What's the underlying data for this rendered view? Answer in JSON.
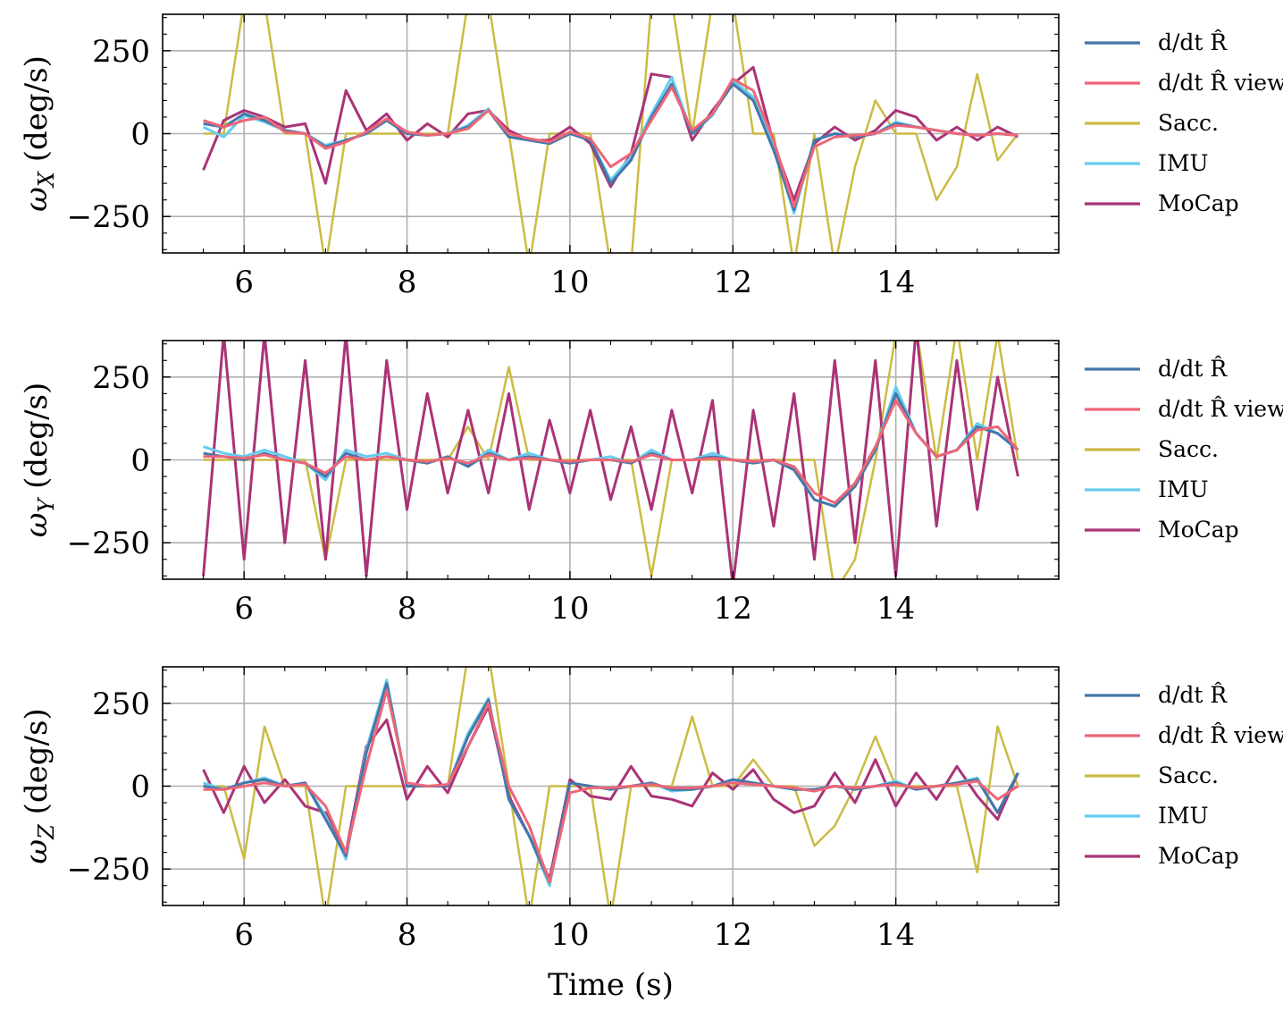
{
  "figure": {
    "xlabel": "Time (s)"
  },
  "legend": [
    {
      "label": "d/dt R̂",
      "color": "#4477AA"
    },
    {
      "label": "d/dt R̂ view",
      "color": "#EE6677"
    },
    {
      "label": "Sacc.",
      "color": "#CCBB44"
    },
    {
      "label": "IMU",
      "color": "#66CCEE"
    },
    {
      "label": "MoCap",
      "color": "#AA3377"
    }
  ],
  "chart_data": [
    {
      "type": "line",
      "ylabel_symbol": "ω",
      "ylabel_sub": "X",
      "ylabel_unit": "(deg/s)",
      "xlim": [
        5.0,
        16.0
      ],
      "ylim": [
        -360,
        360
      ],
      "xticks": [
        6,
        8,
        10,
        12,
        14
      ],
      "yticks": [
        250,
        0,
        -250
      ],
      "grid": true,
      "legend_position": "outside-right",
      "x": [
        5.5,
        5.75,
        6.0,
        6.25,
        6.5,
        6.75,
        7.0,
        7.25,
        7.5,
        7.75,
        8.0,
        8.25,
        8.5,
        8.75,
        9.0,
        9.25,
        9.5,
        9.75,
        10.0,
        10.25,
        10.5,
        10.75,
        11.0,
        11.25,
        11.5,
        11.75,
        12.0,
        12.25,
        12.5,
        12.75,
        13.0,
        13.25,
        13.5,
        13.75,
        14.0,
        14.25,
        14.5,
        14.75,
        15.0,
        15.25,
        15.5
      ],
      "series": [
        {
          "name": "d/dt R̂",
          "color": "#4477AA",
          "values": [
            30,
            20,
            60,
            40,
            10,
            0,
            -40,
            -20,
            0,
            40,
            0,
            -5,
            0,
            20,
            70,
            -10,
            -20,
            -30,
            0,
            -20,
            -150,
            -80,
            50,
            150,
            0,
            60,
            150,
            100,
            -50,
            -230,
            -20,
            0,
            -10,
            0,
            30,
            20,
            10,
            0,
            -5,
            0,
            -5
          ]
        },
        {
          "name": "d/dt R̂ view",
          "color": "#EE6677",
          "values": [
            40,
            20,
            40,
            50,
            5,
            0,
            -45,
            -25,
            5,
            45,
            5,
            -5,
            0,
            15,
            70,
            0,
            -15,
            -25,
            5,
            -15,
            -100,
            -60,
            40,
            140,
            10,
            60,
            165,
            130,
            -20,
            -220,
            -40,
            -10,
            -5,
            0,
            25,
            20,
            10,
            0,
            -5,
            0,
            -5
          ]
        },
        {
          "name": "IMU",
          "color": "#66CCEE",
          "values": [
            20,
            -10,
            55,
            35,
            10,
            0,
            -35,
            -20,
            0,
            40,
            0,
            -5,
            0,
            25,
            75,
            -10,
            -20,
            -30,
            0,
            -20,
            -140,
            -70,
            60,
            170,
            0,
            55,
            160,
            110,
            -40,
            -240,
            -20,
            0,
            -10,
            0,
            35,
            20,
            10,
            0,
            -5,
            0,
            -5
          ]
        },
        {
          "name": "MoCap",
          "color": "#AA3377",
          "values": [
            -110,
            40,
            70,
            50,
            20,
            30,
            -150,
            130,
            10,
            60,
            -20,
            30,
            -10,
            60,
            70,
            10,
            -20,
            -20,
            20,
            -30,
            -160,
            -60,
            180,
            170,
            -20,
            70,
            150,
            200,
            -30,
            -200,
            -30,
            20,
            -20,
            10,
            70,
            50,
            -20,
            20,
            -20,
            20,
            -10
          ]
        },
        {
          "name": "Sacc.",
          "color": "#CCBB44",
          "values": [
            0,
            0,
            400,
            400,
            0,
            0,
            -400,
            0,
            0,
            0,
            0,
            0,
            0,
            400,
            400,
            0,
            -400,
            0,
            0,
            0,
            -400,
            -400,
            400,
            400,
            0,
            400,
            400,
            0,
            0,
            -400,
            0,
            -400,
            -100,
            100,
            0,
            0,
            -200,
            -100,
            180,
            -80,
            0
          ]
        }
      ]
    },
    {
      "type": "line",
      "ylabel_symbol": "ω",
      "ylabel_sub": "Y",
      "ylabel_unit": "(deg/s)",
      "xlim": [
        5.0,
        16.0
      ],
      "ylim": [
        -360,
        360
      ],
      "xticks": [
        6,
        8,
        10,
        12,
        14
      ],
      "yticks": [
        250,
        0,
        -250
      ],
      "grid": true,
      "legend_position": "outside-right",
      "x": [
        5.5,
        5.75,
        6.0,
        6.25,
        6.5,
        6.75,
        7.0,
        7.25,
        7.5,
        7.75,
        8.0,
        8.25,
        8.5,
        8.75,
        9.0,
        9.25,
        9.5,
        9.75,
        10.0,
        10.25,
        10.5,
        10.75,
        11.0,
        11.25,
        11.5,
        11.75,
        12.0,
        12.25,
        12.5,
        12.75,
        13.0,
        13.25,
        13.5,
        13.75,
        14.0,
        14.25,
        14.5,
        14.75,
        15.0,
        15.25,
        15.5
      ],
      "series": [
        {
          "name": "d/dt R̂",
          "color": "#4477AA",
          "values": [
            20,
            10,
            0,
            20,
            0,
            -10,
            -50,
            20,
            0,
            10,
            0,
            -10,
            10,
            -20,
            20,
            0,
            10,
            0,
            -10,
            0,
            0,
            -10,
            20,
            0,
            0,
            10,
            0,
            -10,
            0,
            -30,
            -120,
            -140,
            -80,
            30,
            200,
            80,
            10,
            30,
            100,
            80,
            30
          ]
        },
        {
          "name": "d/dt R̂ view",
          "color": "#EE6677",
          "values": [
            10,
            10,
            5,
            15,
            0,
            -10,
            -40,
            10,
            0,
            10,
            0,
            -5,
            5,
            -10,
            15,
            0,
            5,
            0,
            -5,
            0,
            0,
            -5,
            15,
            0,
            0,
            5,
            0,
            -5,
            0,
            -20,
            -100,
            -130,
            -70,
            40,
            180,
            80,
            10,
            30,
            90,
            100,
            30
          ]
        },
        {
          "name": "IMU",
          "color": "#66CCEE",
          "values": [
            40,
            20,
            10,
            30,
            10,
            -10,
            -60,
            30,
            10,
            20,
            0,
            -10,
            10,
            -20,
            30,
            0,
            20,
            0,
            -10,
            0,
            10,
            -10,
            30,
            0,
            0,
            20,
            0,
            -10,
            0,
            -30,
            -120,
            -140,
            -80,
            30,
            220,
            80,
            10,
            30,
            110,
            80,
            30
          ]
        },
        {
          "name": "MoCap",
          "color": "#AA3377",
          "values": [
            -350,
            380,
            -300,
            380,
            -250,
            300,
            -300,
            380,
            -350,
            300,
            -150,
            200,
            -100,
            150,
            -100,
            200,
            -150,
            120,
            -100,
            150,
            -120,
            100,
            -150,
            150,
            -100,
            180,
            -380,
            150,
            -200,
            200,
            -300,
            300,
            -250,
            300,
            -350,
            400,
            -200,
            300,
            -150,
            250,
            -50
          ]
        },
        {
          "name": "Sacc.",
          "color": "#CCBB44",
          "values": [
            0,
            0,
            0,
            0,
            0,
            0,
            -300,
            0,
            0,
            0,
            0,
            0,
            0,
            100,
            0,
            280,
            0,
            0,
            0,
            0,
            0,
            0,
            -350,
            0,
            0,
            0,
            0,
            0,
            0,
            0,
            0,
            -400,
            -300,
            0,
            380,
            400,
            0,
            400,
            0,
            380,
            0
          ]
        }
      ]
    },
    {
      "type": "line",
      "ylabel_symbol": "ω",
      "ylabel_sub": "Z",
      "ylabel_unit": "(deg/s)",
      "xlim": [
        5.0,
        16.0
      ],
      "ylim": [
        -360,
        360
      ],
      "xticks": [
        6,
        8,
        10,
        12,
        14
      ],
      "yticks": [
        250,
        0,
        -250
      ],
      "grid": true,
      "legend_position": "outside-right",
      "x": [
        5.5,
        5.75,
        6.0,
        6.25,
        6.5,
        6.75,
        7.0,
        7.25,
        7.5,
        7.75,
        8.0,
        8.25,
        8.5,
        8.75,
        9.0,
        9.25,
        9.5,
        9.75,
        10.0,
        10.25,
        10.5,
        10.75,
        11.0,
        11.25,
        11.5,
        11.75,
        12.0,
        12.25,
        12.5,
        12.75,
        13.0,
        13.25,
        13.5,
        13.75,
        14.0,
        14.25,
        14.5,
        14.75,
        15.0,
        15.25,
        15.5
      ],
      "series": [
        {
          "name": "d/dt R̂",
          "color": "#4477AA",
          "values": [
            0,
            -10,
            10,
            20,
            0,
            10,
            -100,
            -210,
            100,
            310,
            0,
            0,
            0,
            150,
            260,
            -40,
            -150,
            -290,
            10,
            0,
            -10,
            0,
            10,
            -10,
            -10,
            0,
            20,
            10,
            0,
            -10,
            -10,
            0,
            -10,
            0,
            10,
            -10,
            0,
            10,
            20,
            -80,
            40
          ]
        },
        {
          "name": "d/dt R̂ view",
          "color": "#EE6677",
          "values": [
            -10,
            -10,
            0,
            10,
            0,
            5,
            -60,
            -200,
            60,
            290,
            10,
            0,
            5,
            120,
            250,
            0,
            -120,
            -290,
            -20,
            -5,
            -5,
            0,
            5,
            -5,
            -5,
            0,
            10,
            5,
            0,
            -5,
            -15,
            0,
            -5,
            0,
            5,
            -5,
            0,
            5,
            15,
            -40,
            0
          ]
        },
        {
          "name": "IMU",
          "color": "#66CCEE",
          "values": [
            10,
            -10,
            10,
            25,
            0,
            10,
            -90,
            -220,
            110,
            320,
            0,
            0,
            0,
            160,
            265,
            -40,
            -150,
            -300,
            10,
            0,
            -10,
            0,
            10,
            -15,
            -10,
            0,
            20,
            10,
            0,
            -10,
            -10,
            0,
            -10,
            0,
            15,
            -10,
            0,
            10,
            25,
            -80,
            40
          ]
        },
        {
          "name": "MoCap",
          "color": "#AA3377",
          "values": [
            50,
            -80,
            60,
            -50,
            20,
            -60,
            -80,
            -200,
            120,
            200,
            -40,
            60,
            -20,
            120,
            240,
            -30,
            -150,
            -280,
            20,
            -30,
            -40,
            60,
            -30,
            -40,
            -60,
            40,
            -10,
            50,
            -40,
            -80,
            -60,
            40,
            -50,
            80,
            -60,
            40,
            -40,
            60,
            -30,
            -100,
            40
          ]
        },
        {
          "name": "Sacc.",
          "color": "#CCBB44",
          "values": [
            0,
            0,
            -220,
            180,
            0,
            0,
            -400,
            0,
            0,
            0,
            0,
            0,
            0,
            400,
            400,
            0,
            -400,
            0,
            0,
            0,
            -400,
            0,
            0,
            0,
            210,
            0,
            0,
            80,
            0,
            0,
            -180,
            -120,
            0,
            150,
            0,
            0,
            0,
            0,
            -260,
            180,
            0
          ]
        }
      ]
    }
  ]
}
